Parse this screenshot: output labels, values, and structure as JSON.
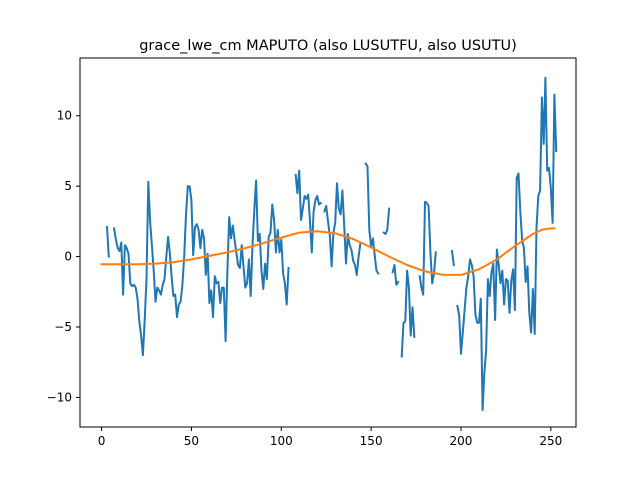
{
  "chart_data": {
    "type": "line",
    "title": "grace_lwe_cm MAPUTO (also LUSUTFU, also USUTU)",
    "xlabel": "",
    "ylabel": "",
    "xlim": [
      -12,
      264
    ],
    "ylim": [
      -12.1,
      14.1
    ],
    "xticks": [
      0,
      50,
      100,
      150,
      200,
      250
    ],
    "yticks": [
      -10,
      -5,
      0,
      5,
      10
    ],
    "grid": false,
    "series": [
      {
        "color": "#1f77b4",
        "points": [
          [
            3,
            2.1
          ],
          [
            4,
            0.0
          ],
          null,
          [
            7,
            2.0
          ],
          [
            8,
            1.2
          ],
          [
            9,
            0.6
          ],
          [
            10,
            0.4
          ],
          [
            11,
            1.0
          ],
          [
            12,
            -2.7
          ],
          [
            13,
            0.8
          ],
          [
            14,
            0.6
          ],
          [
            15,
            0.2
          ],
          [
            16,
            -1.9
          ],
          [
            17,
            -2.1
          ],
          [
            18,
            -2.0
          ],
          [
            19,
            -2.2
          ],
          [
            20,
            -3.0
          ],
          [
            21,
            -4.6
          ],
          [
            22,
            -5.6
          ],
          [
            23,
            -7.0
          ],
          [
            24,
            -4.5
          ],
          [
            25,
            -1.6
          ],
          [
            26,
            5.3
          ],
          [
            27,
            2.5
          ],
          [
            28,
            0.8
          ],
          [
            29,
            -1.0
          ],
          [
            30,
            -3.2
          ],
          [
            31,
            -2.2
          ],
          [
            32,
            -2.4
          ],
          [
            33,
            -2.7
          ],
          [
            34,
            -2.0
          ],
          [
            35,
            -1.6
          ],
          [
            36,
            0.0
          ],
          [
            37,
            1.4
          ],
          [
            38,
            0.2
          ],
          [
            39,
            -1.5
          ],
          [
            40,
            -2.8
          ],
          [
            41,
            -2.7
          ],
          [
            42,
            -4.3
          ],
          [
            43,
            -3.4
          ],
          [
            44,
            -3.2
          ],
          [
            45,
            -2.0
          ],
          [
            46,
            0.0
          ],
          [
            47,
            3.0
          ],
          [
            48,
            5.0
          ],
          [
            49,
            5.0
          ],
          [
            50,
            4.0
          ],
          [
            51,
            0.1
          ],
          [
            52,
            2.1
          ],
          [
            53,
            2.3
          ],
          [
            54,
            1.9
          ],
          [
            55,
            0.6
          ],
          [
            56,
            1.9
          ],
          [
            57,
            1.3
          ],
          [
            58,
            -1.3
          ],
          [
            59,
            0.2
          ],
          [
            60,
            -3.3
          ],
          [
            61,
            -2.4
          ],
          [
            62,
            -4.3
          ],
          [
            63,
            -1.4
          ],
          [
            64,
            -1.9
          ],
          [
            65,
            -1.8
          ],
          [
            66,
            -3.3
          ],
          [
            67,
            -2.2
          ],
          [
            68,
            -2.2
          ],
          [
            69,
            -6.0
          ],
          [
            70,
            -1.0
          ],
          [
            71,
            2.8
          ],
          [
            72,
            1.3
          ],
          [
            73,
            2.2
          ],
          [
            74,
            1.2
          ],
          [
            75,
            0.3
          ],
          [
            76,
            -0.6
          ],
          [
            77,
            -0.8
          ],
          [
            78,
            0.8
          ],
          [
            79,
            -0.7
          ],
          [
            80,
            -2.2
          ],
          [
            81,
            -1.9
          ],
          [
            82,
            -0.2
          ],
          [
            83,
            -2.8
          ],
          [
            84,
            0.8
          ],
          [
            85,
            3.3
          ],
          [
            86,
            5.4
          ],
          [
            87,
            1.1
          ],
          [
            88,
            1.6
          ],
          [
            89,
            -1.0
          ],
          [
            90,
            -2.3
          ],
          [
            91,
            -0.5
          ],
          [
            92,
            -1.6
          ],
          [
            93,
            1.4
          ],
          [
            94,
            1.7
          ],
          [
            95,
            3.7
          ],
          [
            96,
            2.6
          ],
          [
            97,
            0.3
          ],
          [
            98,
            1.9
          ],
          [
            99,
            0.3
          ],
          [
            100,
            1.2
          ],
          [
            101,
            -1.2
          ],
          [
            102,
            -1.9
          ],
          [
            103,
            -3.4
          ],
          [
            104,
            -0.8
          ],
          null,
          [
            108,
            5.8
          ],
          [
            109,
            4.5
          ],
          [
            110,
            6.1
          ],
          [
            111,
            2.6
          ],
          [
            112,
            3.4
          ],
          [
            113,
            4.3
          ],
          [
            114,
            4.1
          ],
          [
            115,
            4.4
          ],
          [
            116,
            2.5
          ],
          [
            117,
            0.3
          ],
          [
            118,
            3.2
          ],
          [
            119,
            4.0
          ],
          [
            120,
            4.3
          ],
          [
            121,
            3.7
          ],
          [
            122,
            3.8
          ],
          null,
          [
            124,
            3.2
          ],
          [
            125,
            3.6
          ],
          [
            126,
            2.5
          ],
          [
            127,
            1.5
          ],
          [
            128,
            -0.7
          ],
          [
            129,
            1.7
          ],
          [
            130,
            2.4
          ],
          [
            131,
            5.2
          ],
          [
            132,
            3.4
          ],
          [
            133,
            3.0
          ],
          [
            134,
            4.7
          ],
          [
            135,
            2.2
          ],
          [
            136,
            -0.5
          ],
          [
            137,
            1.6
          ],
          [
            138,
            0.8
          ],
          [
            139,
            0.5
          ],
          [
            140,
            -0.3
          ],
          [
            141,
            -0.6
          ],
          [
            142,
            -1.3
          ],
          [
            143,
            0.0
          ],
          [
            144,
            0.9
          ],
          null,
          [
            147,
            6.6
          ],
          [
            148,
            6.4
          ],
          [
            149,
            1.9
          ],
          [
            150,
            0.7
          ],
          [
            151,
            1.3
          ],
          [
            152,
            0.1
          ],
          [
            153,
            -1.0
          ],
          [
            154,
            -1.2
          ],
          null,
          [
            157,
            1.7
          ],
          [
            158,
            1.6
          ],
          [
            159,
            1.9
          ],
          [
            160,
            3.4
          ],
          null,
          [
            162,
            -1.1
          ],
          [
            163,
            -0.6
          ],
          [
            164,
            -2.0
          ],
          [
            165,
            -1.8
          ],
          null,
          [
            167,
            -7.1
          ],
          [
            168,
            -4.7
          ],
          [
            169,
            -4.6
          ],
          [
            170,
            -1.0
          ],
          [
            171,
            -2.2
          ],
          [
            172,
            -5.6
          ],
          [
            173,
            -3.6
          ],
          [
            174,
            -5.7
          ],
          null,
          [
            177,
            -1.4
          ],
          [
            178,
            -2.2
          ],
          [
            179,
            -2.7
          ],
          [
            180,
            3.9
          ],
          [
            181,
            3.8
          ],
          [
            182,
            3.6
          ],
          [
            183,
            0.3
          ],
          [
            184,
            -1.9
          ],
          [
            185,
            -1.2
          ],
          [
            186,
            0.3
          ],
          null,
          [
            195,
            0.4
          ],
          [
            196,
            -0.6
          ],
          null,
          [
            198,
            -3.5
          ],
          [
            199,
            -4.2
          ],
          [
            200,
            -6.9
          ],
          [
            201,
            -5.4
          ],
          [
            202,
            -3.8
          ],
          [
            203,
            -2.2
          ],
          [
            204,
            -1.4
          ],
          [
            205,
            -0.2
          ],
          [
            206,
            -0.6
          ],
          [
            207,
            -1.4
          ],
          [
            208,
            -4.1
          ],
          [
            209,
            -4.7
          ],
          [
            210,
            -4.7
          ],
          [
            211,
            -3.0
          ],
          [
            212,
            -10.9
          ],
          [
            213,
            -8.3
          ],
          [
            214,
            -6.7
          ],
          [
            215,
            -1.6
          ],
          [
            216,
            -2.8
          ],
          [
            217,
            -1.1
          ],
          [
            218,
            -0.5
          ],
          [
            219,
            -4.5
          ],
          [
            220,
            0.5
          ],
          [
            221,
            -0.6
          ],
          [
            222,
            -1.9
          ],
          [
            223,
            -1.0
          ],
          [
            224,
            -3.4
          ],
          [
            225,
            -1.6
          ],
          [
            226,
            -1.7
          ],
          [
            227,
            -4.0
          ],
          [
            228,
            -1.7
          ],
          [
            229,
            -0.9
          ],
          [
            230,
            -3.8
          ],
          [
            231,
            5.6
          ],
          [
            232,
            5.9
          ],
          [
            233,
            3.2
          ],
          [
            234,
            1.2
          ],
          [
            235,
            0.6
          ],
          [
            236,
            -1.8
          ],
          [
            237,
            -0.7
          ],
          [
            238,
            -4.0
          ],
          [
            239,
            -5.4
          ],
          [
            240,
            -2.3
          ],
          [
            241,
            -5.5
          ],
          [
            242,
            2.1
          ],
          [
            243,
            4.3
          ],
          [
            244,
            4.7
          ],
          [
            245,
            11.3
          ],
          [
            246,
            8.0
          ],
          [
            247,
            12.7
          ],
          [
            248,
            6.1
          ],
          [
            249,
            6.3
          ],
          [
            250,
            4.9
          ],
          [
            251,
            2.4
          ],
          [
            252,
            11.5
          ],
          [
            253,
            7.5
          ]
        ]
      },
      {
        "color": "#ff7f0e",
        "points": [
          [
            0,
            -0.55
          ],
          [
            10,
            -0.55
          ],
          [
            20,
            -0.55
          ],
          [
            30,
            -0.5
          ],
          [
            40,
            -0.4
          ],
          [
            50,
            -0.2
          ],
          [
            60,
            0.05
          ],
          [
            70,
            0.3
          ],
          [
            80,
            0.6
          ],
          [
            90,
            0.95
          ],
          [
            100,
            1.35
          ],
          [
            110,
            1.7
          ],
          [
            120,
            1.8
          ],
          [
            130,
            1.65
          ],
          [
            140,
            1.25
          ],
          [
            150,
            0.65
          ],
          [
            160,
            0.0
          ],
          [
            170,
            -0.6
          ],
          [
            180,
            -1.05
          ],
          [
            190,
            -1.3
          ],
          [
            200,
            -1.3
          ],
          [
            210,
            -0.9
          ],
          [
            220,
            -0.2
          ],
          [
            230,
            0.75
          ],
          [
            240,
            1.6
          ],
          [
            245,
            1.9
          ],
          [
            250,
            2.0
          ],
          [
            252,
            2.0
          ]
        ]
      }
    ]
  }
}
